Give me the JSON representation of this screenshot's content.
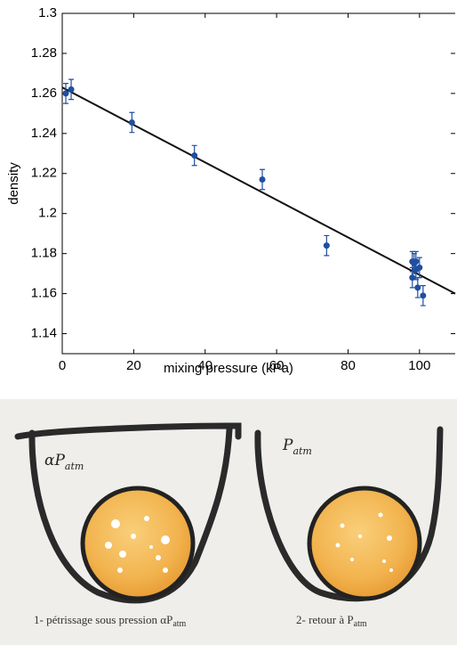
{
  "chart_data": {
    "type": "scatter",
    "xlabel": "mixing pressure (kPa)",
    "ylabel": "density",
    "xlim": [
      0,
      110
    ],
    "ylim": [
      1.13,
      1.3
    ],
    "xticks": [
      0,
      20,
      40,
      60,
      80,
      100
    ],
    "yticks": [
      1.14,
      1.16,
      1.18,
      1.2,
      1.22,
      1.24,
      1.26,
      1.28,
      1.3
    ],
    "points": {
      "color": "#1f4fa0",
      "x": [
        1,
        2.5,
        19.5,
        37,
        56,
        74,
        98,
        98.5,
        99,
        98,
        99,
        100,
        99.5,
        101
      ],
      "values": [
        1.26,
        1.262,
        1.2455,
        1.229,
        1.217,
        1.184,
        1.176,
        1.175,
        1.172,
        1.168,
        1.176,
        1.173,
        1.163,
        1.159
      ],
      "errors": [
        0.005,
        0.005,
        0.005,
        0.005,
        0.005,
        0.005,
        0.005,
        0.005,
        0.005,
        0.005,
        0.005,
        0.005,
        0.005,
        0.005
      ]
    },
    "fit": {
      "color": "#111111",
      "x": [
        0,
        110
      ],
      "values": [
        1.263,
        1.16
      ]
    }
  },
  "illustration": {
    "label1": "αP",
    "label1_sub": "atm",
    "label2": "P",
    "label2_sub": "atm",
    "caption1": "1- pétrissage sous pression αP",
    "caption1_sub": "atm",
    "caption2": "2- retour à P",
    "caption2_sub": "atm"
  }
}
